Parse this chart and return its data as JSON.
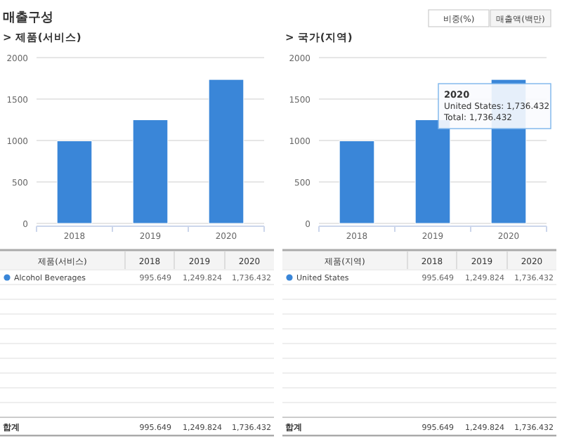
{
  "chart_data": [
    {
      "type": "bar",
      "title": "매출구성",
      "subtitle": "> 제품(서비스)",
      "legend_title": "제품(서비스)",
      "categories": [
        "2018",
        "2019",
        "2020"
      ],
      "series": [
        {
          "name": "Alcohol Beverages",
          "color": "#3a86d8",
          "values": [
            995.649,
            1249.824,
            1736.432
          ]
        }
      ],
      "ylim": [
        0,
        2000
      ],
      "yticks": [
        0,
        500,
        1000,
        1500,
        2000
      ],
      "grid": "y",
      "annotations": [
        "995.649",
        "1,249.824",
        "1,736.432",
        "합계",
        "995.649",
        "1,249.824",
        "1,736.432"
      ]
    },
    {
      "type": "bar",
      "subtitle": "> 국가(지역)",
      "legend_title": "제품(지역)",
      "categories": [
        "2018",
        "2019",
        "2020"
      ],
      "series": [
        {
          "name": "United States",
          "color": "#3a86d8",
          "values": [
            995.649,
            1249.824,
            1736.432
          ]
        }
      ],
      "ylim": [
        0,
        2000
      ],
      "yticks": [
        0,
        500,
        1000,
        1500,
        2000
      ],
      "grid": "y",
      "annotations": [
        "995.649",
        "1,249.824",
        "1,736.432",
        "합계",
        "995.649",
        "1,249.824",
        "1,736.432",
        "비중(%)",
        "매출액(백만)",
        {
          "text": "2020\nUnited States: 1,736.432\nTotal: 1,736.432",
          "x": "2020",
          "y": 1736.432
        }
      ]
    }
  ]
}
